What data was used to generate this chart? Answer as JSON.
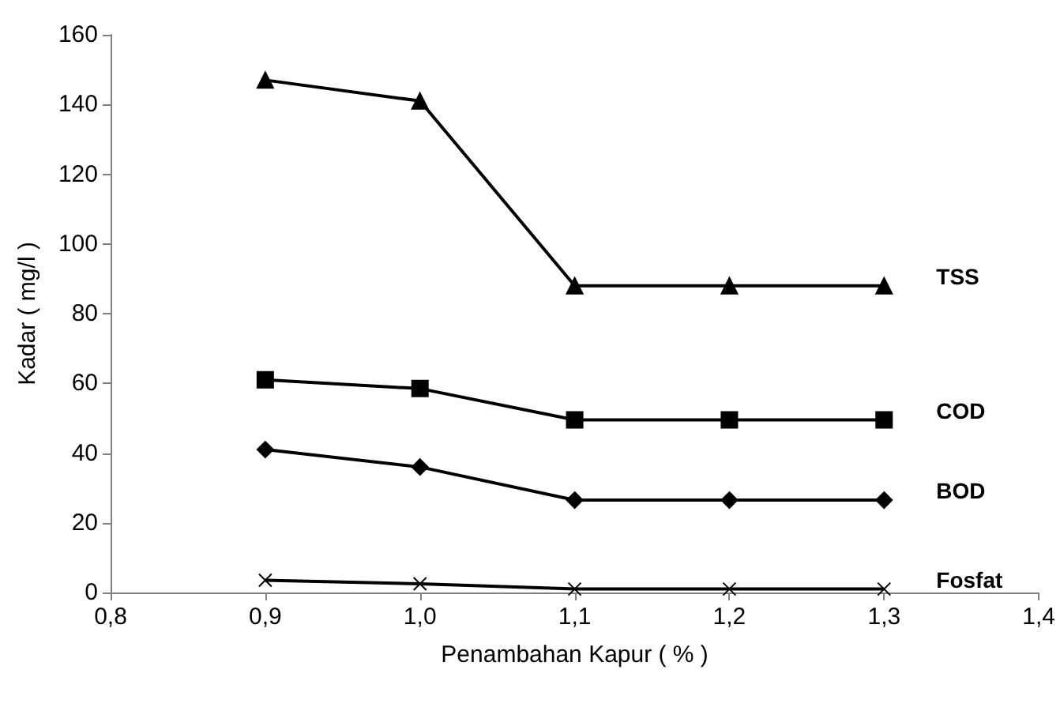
{
  "chart_data": {
    "type": "line",
    "xlabel": "Penambahan Kapur ( % )",
    "ylabel": "Kadar ( mg/l )",
    "x": [
      0.9,
      1.0,
      1.1,
      1.2,
      1.3
    ],
    "series": [
      {
        "name": "TSS",
        "color": "#000000",
        "marker": "triangle",
        "values": [
          147,
          141,
          88,
          88,
          88
        ]
      },
      {
        "name": "COD",
        "color": "#000000",
        "marker": "square",
        "values": [
          61,
          58.5,
          49.5,
          49.5,
          49.5
        ]
      },
      {
        "name": "BOD",
        "color": "#000000",
        "marker": "diamond",
        "values": [
          41,
          36,
          26.5,
          26.5,
          26.5
        ]
      },
      {
        "name": "Fosfat",
        "color": "#000000",
        "marker": "cross",
        "values": [
          3.5,
          2.5,
          1,
          1,
          1
        ]
      }
    ],
    "xlim": [
      0.8,
      1.4
    ],
    "xticks": [
      {
        "value": 0.8,
        "label": "0,8"
      },
      {
        "value": 0.9,
        "label": "0,9"
      },
      {
        "value": 1.0,
        "label": "1,0"
      },
      {
        "value": 1.1,
        "label": "1,1"
      },
      {
        "value": 1.2,
        "label": "1,2"
      },
      {
        "value": 1.3,
        "label": "1,3"
      },
      {
        "value": 1.4,
        "label": "1,4"
      }
    ],
    "ylim": [
      0,
      160
    ],
    "yticks": [
      0,
      20,
      40,
      60,
      80,
      100,
      120,
      140,
      160
    ],
    "grid": false,
    "legend": false
  }
}
